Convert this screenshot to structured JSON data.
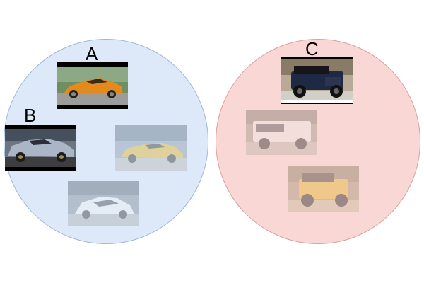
{
  "groups": [
    {
      "id": "left",
      "color": "#dde9f9",
      "stroke": "#9fb6d9"
    },
    {
      "id": "right",
      "color": "#f8d7d5",
      "stroke": "#d9a09c"
    }
  ],
  "highlighted": [
    {
      "label": "A",
      "subject": "orange-sports-car-icon"
    },
    {
      "label": "B",
      "subject": "silver-sports-car-icon"
    },
    {
      "label": "C",
      "subject": "dark-jeep-icon"
    }
  ],
  "faded": [
    {
      "subject": "yellow-sports-car-icon"
    },
    {
      "subject": "white-concept-car-icon"
    },
    {
      "subject": "white-suv-icon"
    },
    {
      "subject": "yellow-jeep-icon"
    }
  ]
}
